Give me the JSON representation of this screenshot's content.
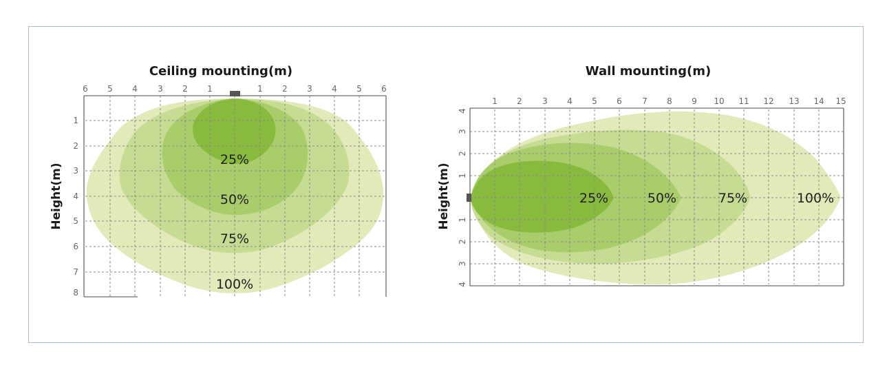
{
  "ceiling": {
    "title": "Ceiling mounting(m)",
    "y_label": "Height(m)",
    "x_ticks": [
      "6",
      "5",
      "4",
      "3",
      "2",
      "1",
      "1",
      "2",
      "3",
      "4",
      "5",
      "6"
    ],
    "y_ticks": [
      "1",
      "2",
      "3",
      "4",
      "5",
      "6",
      "7",
      "8"
    ],
    "zones": [
      {
        "label": "100%",
        "color": "#dfe8b4"
      },
      {
        "label": "75%",
        "color": "#c4da8f"
      },
      {
        "label": "50%",
        "color": "#a7cb68"
      },
      {
        "label": "25%",
        "color": "#86b93b"
      }
    ],
    "fixture_color": "#555555"
  },
  "wall": {
    "title": "Wall mounting(m)",
    "y_label": "Height(m)",
    "x_ticks": [
      "1",
      "2",
      "3",
      "4",
      "5",
      "6",
      "7",
      "8",
      "9",
      "10",
      "11",
      "12",
      "13",
      "14",
      "15"
    ],
    "y_ticks": [
      "4",
      "3",
      "2",
      "1",
      "",
      "1",
      "2",
      "3",
      "4"
    ],
    "zones": [
      {
        "label": "100%",
        "color": "#dfe8b4"
      },
      {
        "label": "75%",
        "color": "#c4da8f"
      },
      {
        "label": "50%",
        "color": "#a7cb68"
      },
      {
        "label": "25%",
        "color": "#86b93b"
      }
    ],
    "fixture_color": "#555555"
  },
  "frame_color": "#a9bccd"
}
